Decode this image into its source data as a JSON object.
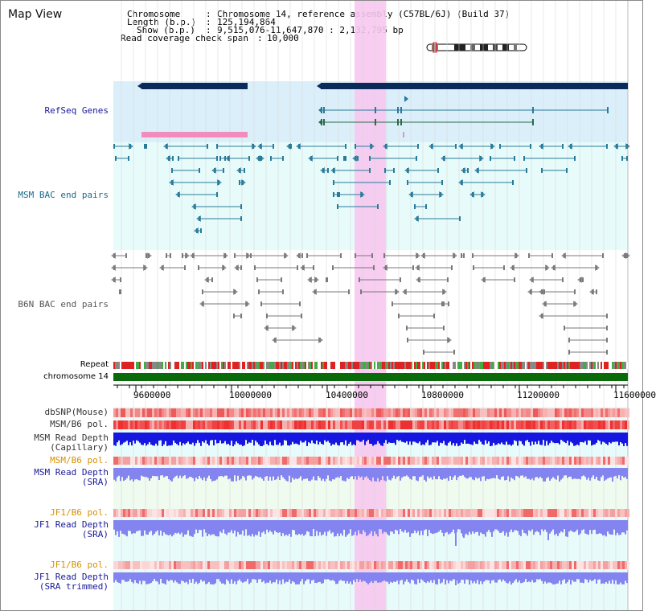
{
  "app": {
    "title": "Map View"
  },
  "header": {
    "chromosome_key": "Chromosome",
    "chromosome_val": "Chromosome 14, reference assembly (C57BL/6J) (Build 37)",
    "length_key": "Length (b.p.)",
    "length_val": "125,194,864",
    "show_key": "Show (b.p.)",
    "show_val": "9,515,076-11,647,870 : 2,132,795 bp",
    "coverage_key": "Read coverage check span",
    "coverage_val": "10,000"
  },
  "tracks": {
    "refseq": "RefSeq Genes",
    "msm_bac": "MSM BAC end pairs",
    "b6n_bac": "B6N BAC end pairs",
    "repeat": "Repeat",
    "chromosome": "chromosome 14",
    "dbsnp": "dbSNP(Mouse)",
    "msm_b6_pol_1": "MSM/B6 pol.",
    "msm_depth_cap_1": "MSM Read Depth",
    "msm_depth_cap_2": "(Capillary)",
    "msm_b6_pol_2": "MSM/B6 pol.",
    "msm_depth_sra_1": "MSM Read Depth",
    "msm_depth_sra_2": "(SRA)",
    "jf1_pol_1": "JF1/B6 pol.",
    "jf1_depth_sra_1": "JF1 Read Depth",
    "jf1_depth_sra_2": "(SRA)",
    "jf1_pol_2": "JF1/B6 pol.",
    "jf1_depth_trim_1": "JF1 Read Depth",
    "jf1_depth_trim_2": "(SRA trimmed)"
  },
  "axis": {
    "ticks": [
      "9600000",
      "10000000",
      "10400000",
      "10800000",
      "11200000",
      "11600000"
    ]
  },
  "colors": {
    "refseq_bg": "#dbeffa",
    "msm_bg": "#e8fbfb",
    "highlight": "#f7c8ef",
    "gene_navy": "#0a2a5a",
    "teal": "#2a7a9a",
    "gray": "#7a7a7a",
    "chromosome_green": "#0a6a0a",
    "red": "#e83030",
    "blue": "#1616e0",
    "light_blue": "#8484f0",
    "orange_label": "#d89000",
    "navy_label": "#1a1a9a"
  }
}
